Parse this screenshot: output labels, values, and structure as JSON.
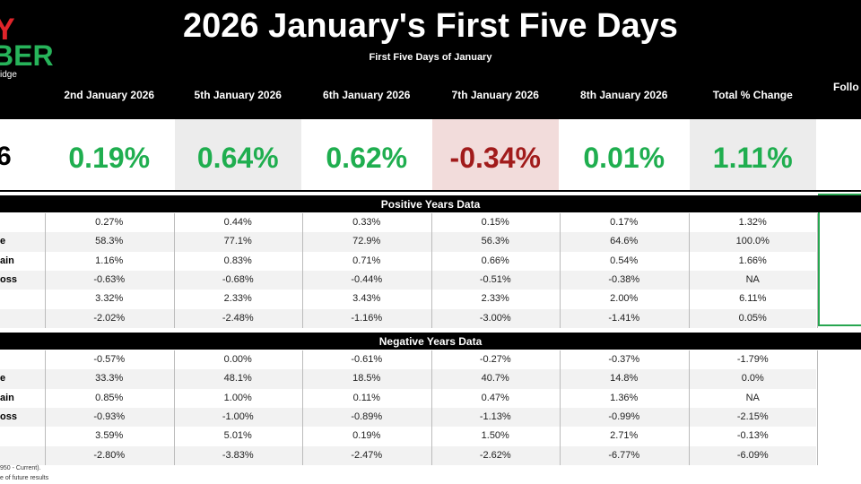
{
  "header": {
    "logo_top": "Y",
    "logo_bottom": "BER",
    "logo_sub": "idge",
    "title": "2026 January's First Five Days",
    "subtitle": "First Five Days of January"
  },
  "table": {
    "columns": [
      "2nd January 2026",
      "5th January 2026",
      "6th January 2026",
      "7th January 2026",
      "8th January 2026",
      "Total % Change",
      "Follo"
    ],
    "current": {
      "label": "6",
      "values": [
        "0.19%",
        "0.64%",
        "0.62%",
        "-0.34%",
        "0.01%",
        "1.11%"
      ]
    },
    "sections": [
      {
        "title": "Positive Years Data",
        "rows": [
          {
            "values": [
              "0.27%",
              "0.44%",
              "0.33%",
              "0.15%",
              "0.17%",
              "1.32%"
            ]
          },
          {
            "label": "e",
            "values": [
              "58.3%",
              "77.1%",
              "72.9%",
              "56.3%",
              "64.6%",
              "100.0%"
            ]
          },
          {
            "label": "ain",
            "values": [
              "1.16%",
              "0.83%",
              "0.71%",
              "0.66%",
              "0.54%",
              "1.66%"
            ]
          },
          {
            "label": "oss",
            "values": [
              "-0.63%",
              "-0.68%",
              "-0.44%",
              "-0.51%",
              "-0.38%",
              "NA"
            ]
          },
          {
            "values": [
              "3.32%",
              "2.33%",
              "3.43%",
              "2.33%",
              "2.00%",
              "6.11%"
            ]
          },
          {
            "values": [
              "-2.02%",
              "-2.48%",
              "-1.16%",
              "-3.00%",
              "-1.41%",
              "0.05%"
            ]
          }
        ]
      },
      {
        "title": "Negative Years Data",
        "rows": [
          {
            "values": [
              "-0.57%",
              "0.00%",
              "-0.61%",
              "-0.27%",
              "-0.37%",
              "-1.79%"
            ]
          },
          {
            "label": "e",
            "values": [
              "33.3%",
              "48.1%",
              "18.5%",
              "40.7%",
              "14.8%",
              "0.0%"
            ]
          },
          {
            "label": "ain",
            "values": [
              "0.85%",
              "1.00%",
              "0.11%",
              "0.47%",
              "1.36%",
              "NA"
            ]
          },
          {
            "label": "oss",
            "values": [
              "-0.93%",
              "-1.00%",
              "-0.89%",
              "-1.13%",
              "-0.99%",
              "-2.15%"
            ]
          },
          {
            "values": [
              "3.59%",
              "5.01%",
              "0.19%",
              "1.50%",
              "2.71%",
              "-0.13%"
            ]
          },
          {
            "values": [
              "-2.80%",
              "-3.83%",
              "-2.47%",
              "-2.62%",
              "-6.77%",
              "-6.09%"
            ]
          }
        ]
      }
    ]
  },
  "footnotes": [
    "950 - Current).",
    "e of future results"
  ]
}
